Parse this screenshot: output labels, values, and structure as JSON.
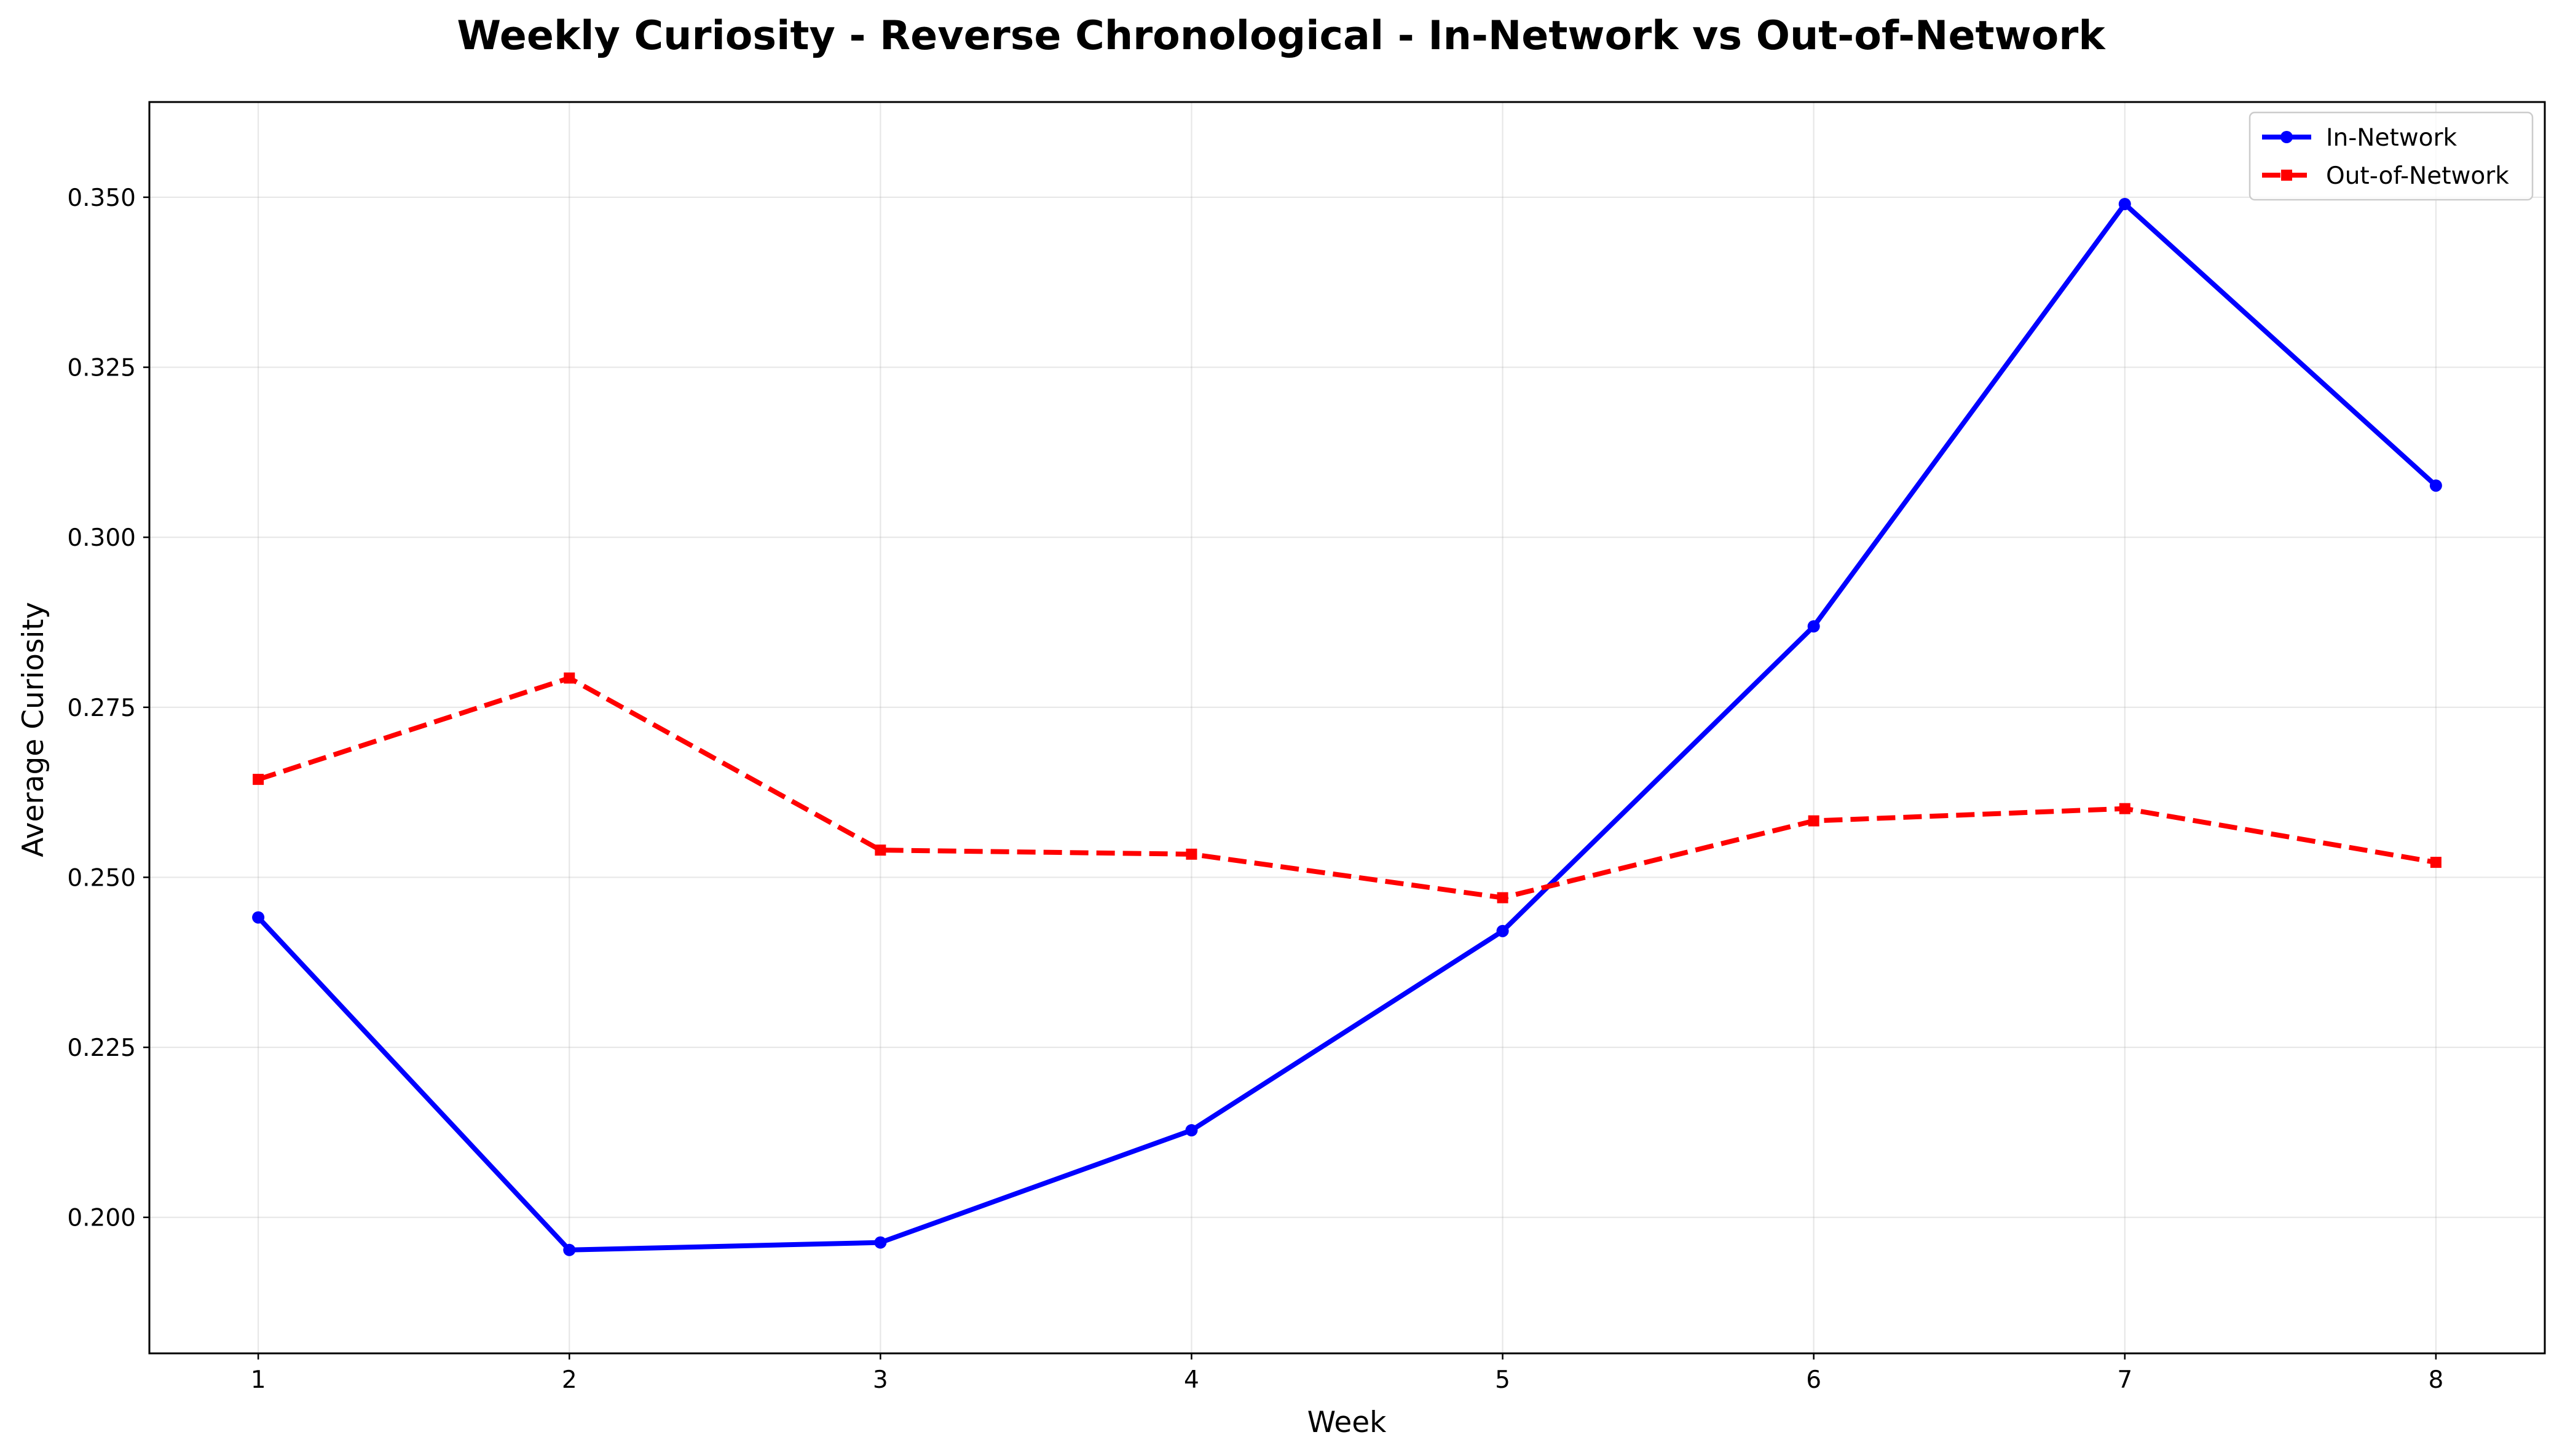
{
  "chart_data": {
    "type": "line",
    "title": "Weekly Curiosity - Reverse Chronological - In-Network vs Out-of-Network",
    "xlabel": "Week",
    "ylabel": "Average Curiosity",
    "x": [
      1,
      2,
      3,
      4,
      5,
      6,
      7,
      8
    ],
    "x_tick_labels": [
      "1",
      "2",
      "3",
      "4",
      "5",
      "6",
      "7",
      "8"
    ],
    "y_ticks": [
      0.2,
      0.225,
      0.25,
      0.275,
      0.3,
      0.325,
      0.35
    ],
    "y_tick_labels": [
      "0.200",
      "0.225",
      "0.250",
      "0.275",
      "0.300",
      "0.325",
      "0.350"
    ],
    "xlim": [
      0.65,
      8.35
    ],
    "ylim": [
      0.18,
      0.364
    ],
    "grid": true,
    "legend_position": "upper right",
    "series": [
      {
        "name": "In-Network",
        "color": "#0000ff",
        "line_style": "solid",
        "marker": "circle",
        "values": [
          0.2441,
          0.1952,
          0.1963,
          0.2128,
          0.2421,
          0.2869,
          0.349,
          0.3076
        ]
      },
      {
        "name": "Out-of-Network",
        "color": "#ff0000",
        "line_style": "dashed",
        "marker": "square",
        "values": [
          0.2644,
          0.2793,
          0.254,
          0.2534,
          0.247,
          0.2583,
          0.2601,
          0.2522
        ]
      }
    ]
  }
}
